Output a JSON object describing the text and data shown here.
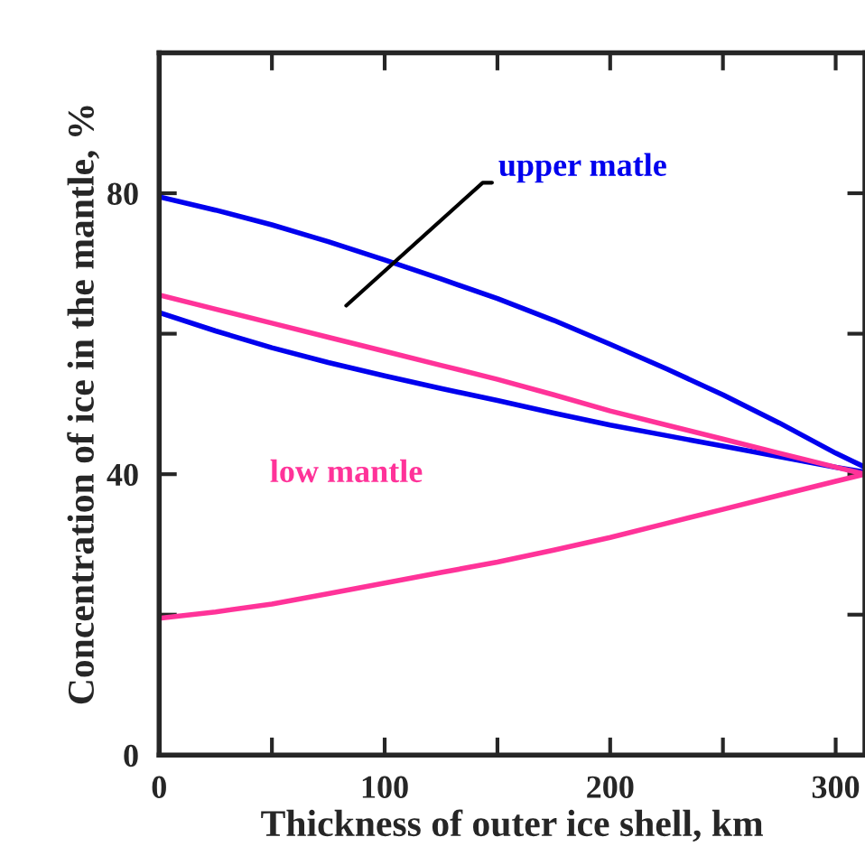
{
  "chart_data": {
    "type": "line",
    "xlabel": "Thickness of outer ice shell, km",
    "ylabel": "Concentration of ice in the mantle, %",
    "x": [
      0,
      25,
      50,
      75,
      100,
      125,
      150,
      175,
      200,
      225,
      250,
      275,
      300,
      313
    ],
    "series": [
      {
        "color": "#0000ee",
        "values": [
          79.5,
          77.6,
          75.5,
          73.1,
          70.5,
          67.8,
          65,
          61.9,
          58.5,
          55,
          51.3,
          47.3,
          43,
          41
        ]
      },
      {
        "color": "#0000ee",
        "values": [
          63,
          60.4,
          58,
          55.9,
          54,
          52.2,
          50.5,
          48.7,
          47,
          45.5,
          44,
          42.5,
          41,
          40.3
        ]
      },
      {
        "color": "#ff3399",
        "values": [
          65.5,
          63.5,
          61.5,
          59.5,
          57.5,
          55.5,
          53.5,
          51.3,
          49,
          47,
          45,
          43,
          41,
          40
        ]
      },
      {
        "color": "#ff3399",
        "values": [
          19.5,
          20.4,
          21.5,
          23,
          24.5,
          26,
          27.5,
          29.2,
          31,
          33,
          35,
          37,
          39,
          40
        ]
      }
    ],
    "annotations": [
      "upper matle",
      "low mantle"
    ],
    "xlim": [
      0,
      313
    ],
    "ylim": [
      0,
      100
    ],
    "xticks": [
      0,
      {
        "value": 50,
        "label": null
      },
      100,
      {
        "value": 150,
        "label": null
      },
      200,
      {
        "value": 250,
        "label": null
      },
      300
    ],
    "yticks": [
      0,
      {
        "value": 20,
        "label": null
      },
      40,
      {
        "value": 60,
        "label": null
      },
      80,
      {
        "value": 100,
        "label": null
      }
    ],
    "grid": false,
    "legend": false,
    "marker": "none",
    "line_style": "solid"
  }
}
